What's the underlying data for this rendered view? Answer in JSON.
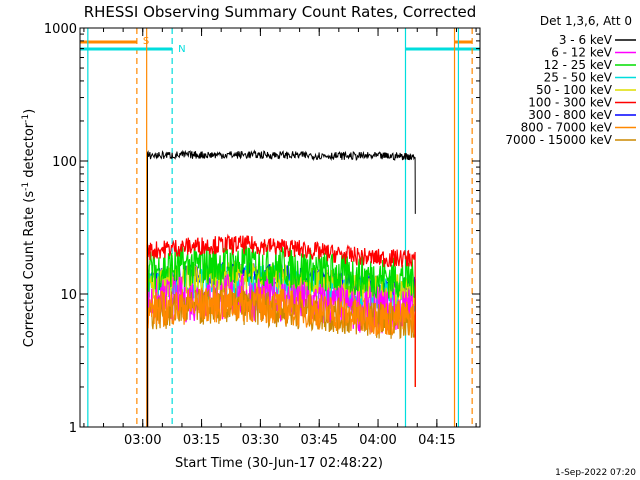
{
  "chart_data": {
    "type": "line",
    "title": "RHESSI Observing Summary Count Rates, Corrected",
    "xlabel": "Start Time (30-Jun-17 02:48:22)",
    "ylabel_main": "Corrected Count Rate (s",
    "ylabel_sup1": "-1",
    "ylabel_mid": " detector",
    "ylabel_sup2": "-1",
    "ylabel_end": ")",
    "yscale": "log",
    "ylim": [
      1,
      1000
    ],
    "xlim_minutes": [
      -16,
      86
    ],
    "x_tick_labels": [
      "03:00",
      "03:15",
      "03:30",
      "03:45",
      "04:00",
      "04:15"
    ],
    "x_tick_minutes": [
      0,
      15,
      30,
      45,
      60,
      75
    ],
    "y_tick_labels": [
      "1",
      "10",
      "100",
      "1000"
    ],
    "y_tick_values": [
      1,
      10,
      100,
      1000
    ],
    "legend_title": "Det 1,3,6, Att 0",
    "legend_position": "right",
    "series": [
      {
        "name": "3 - 6 keV",
        "color": "#000000",
        "level": 110,
        "noise": 0.03
      },
      {
        "name": "6 - 12 keV",
        "color": "#ff00ff",
        "level": 8.5,
        "noise": 0.18
      },
      {
        "name": "12 - 25 keV",
        "color": "#00dd00",
        "level": 15,
        "noise": 0.16
      },
      {
        "name": "25 - 50 keV",
        "color": "#00dddd",
        "level": 11,
        "noise": 0.14
      },
      {
        "name": "50 - 100 keV",
        "color": "#dddd00",
        "level": 12,
        "noise": 0.12
      },
      {
        "name": "100 - 300 keV",
        "color": "#ff0000",
        "level": 21,
        "noise": 0.07
      },
      {
        "name": "300 - 800 keV",
        "color": "#0000ff",
        "level": 13,
        "noise": 0.08
      },
      {
        "name": "800 - 7000 keV",
        "color": "#ff8800",
        "level": 7.5,
        "noise": 0.14
      },
      {
        "name": "7000 - 15000 keV",
        "color": "#cc8800",
        "level": 7.2,
        "noise": 0.14
      }
    ],
    "data_start_minutes": 1.2,
    "data_end_minutes": 69.5,
    "markers": [
      {
        "label": "S",
        "color": "#ff8800",
        "minute": -1.5,
        "dashed": true,
        "bar_from": -16,
        "bar_to": -1.5
      },
      {
        "label": "N",
        "color": "#00dddd",
        "minute": 7.5,
        "dashed": true,
        "bar_from": -16,
        "bar_to": 7.5
      },
      {
        "label": "",
        "color": "#00dddd",
        "minute": -14,
        "dashed": false
      },
      {
        "label": "",
        "color": "#ff8800",
        "minute": 1.0,
        "dashed": false
      },
      {
        "label": "",
        "color": "#00dddd",
        "minute": 67.0,
        "dashed": false,
        "bar_from": 67.0,
        "bar_to": 86
      },
      {
        "label": "",
        "color": "#ff8800",
        "minute": 79.5,
        "dashed": false,
        "bar_from": 79.5,
        "bar_to": 84
      },
      {
        "label": "",
        "color": "#ff8800",
        "minute": 84.0,
        "dashed": true
      },
      {
        "label": "",
        "color": "#00dddd",
        "minute": 80.5,
        "dashed": false
      }
    ],
    "footer": "1-Sep-2022 07:20"
  }
}
